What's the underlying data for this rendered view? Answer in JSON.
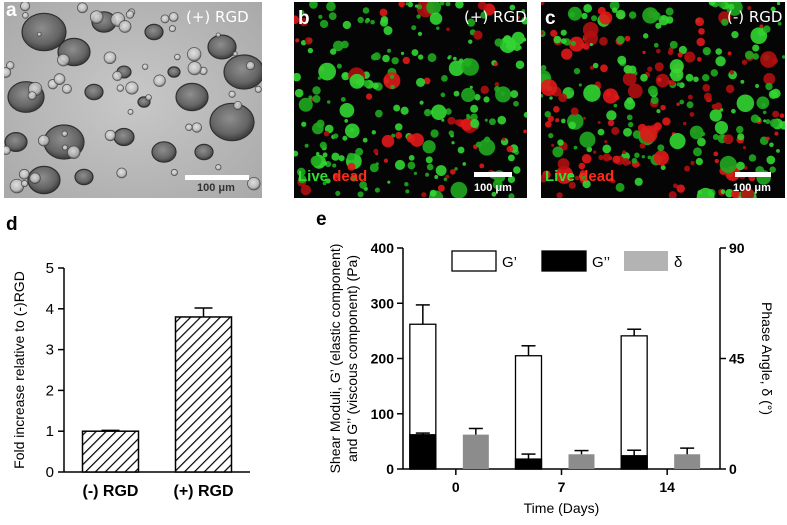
{
  "figure": {
    "panel_a": {
      "letter": "a",
      "condition": "(+) RGD",
      "scale_label": "100 μm"
    },
    "panel_b": {
      "letter": "b",
      "condition": "(+) RGD",
      "scale_label": "100 μm",
      "stain_live": "Live",
      "stain_dead": "dead"
    },
    "panel_c": {
      "letter": "c",
      "condition": "(-) RGD",
      "scale_label": "100 μm",
      "stain_live": "Live",
      "stain_dead": "dead"
    },
    "panel_d": {
      "letter": "d"
    },
    "panel_e": {
      "letter": "e"
    }
  },
  "chart_data": [
    {
      "type": "bar",
      "panel": "d",
      "categories": [
        "(-) RGD",
        "(+) RGD"
      ],
      "values": [
        1.0,
        3.8
      ],
      "errors": [
        0.02,
        0.22
      ],
      "ylabel": "Fold increase relative to (-)RGD",
      "xlabel": "",
      "ylim": [
        0,
        5
      ],
      "yticks": [
        0,
        1,
        2,
        3,
        4,
        5
      ],
      "style": "hatched",
      "grid": false
    },
    {
      "type": "bar",
      "panel": "e",
      "categories": [
        "0",
        "7",
        "14"
      ],
      "xlabel": "Time (Days)",
      "ylabel_left": "Shear Moduli, G' (elastic component) and G'' (viscous component) (Pa)",
      "ylabel_left_line1": "Shear Moduli, G’ (elastic component)",
      "ylabel_left_line2": "and G’’ (viscous component) (Pa)",
      "ylabel_right": "Phase Angle, δ (°)",
      "ylim_left": [
        0,
        400
      ],
      "yticks_left": [
        0,
        100,
        200,
        300,
        400
      ],
      "ylim_right": [
        0,
        90
      ],
      "yticks_right": [
        0,
        45,
        90
      ],
      "legend": [
        {
          "name": "G’",
          "color": "#ffffff"
        },
        {
          "name": "G’’",
          "color": "#000000"
        },
        {
          "name": "δ",
          "color": "#b3b3b3"
        }
      ],
      "legend_position": "top",
      "series": [
        {
          "name": "G’",
          "axis": "left",
          "stacked": true,
          "color": "#ffffff",
          "values": [
            262,
            205,
            241
          ],
          "errors": [
            35,
            18,
            12
          ]
        },
        {
          "name": "G’’",
          "axis": "left",
          "stacked": true,
          "color": "#000000",
          "values": [
            62,
            18,
            24
          ],
          "errors": [
            3,
            9,
            10
          ]
        },
        {
          "name": "δ",
          "axis": "right",
          "stacked": false,
          "color": "#8c8c8c",
          "values": [
            14,
            6,
            6
          ],
          "errors": [
            2.5,
            1.5,
            2.5
          ]
        }
      ],
      "grid": false
    }
  ]
}
